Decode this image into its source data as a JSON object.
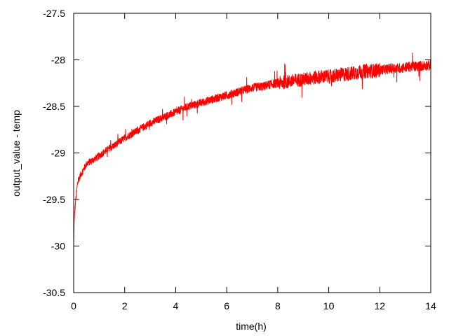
{
  "chart_data": {
    "type": "line",
    "title": "",
    "xlabel": "time(h)",
    "ylabel": "output_value - temp",
    "xlim": [
      0,
      14
    ],
    "ylim": [
      -30.5,
      -27.5
    ],
    "x_ticks": [
      0,
      2,
      4,
      6,
      8,
      10,
      12,
      14
    ],
    "y_ticks": [
      -30.5,
      -30,
      -29.5,
      -29,
      -28.5,
      -28,
      -27.5
    ],
    "x_tick_labels": [
      "0",
      "2",
      "4",
      "6",
      "8",
      "10",
      "12",
      "14"
    ],
    "y_tick_labels": [
      "-30.5",
      "-30",
      "-29.5",
      "-29",
      "-28.5",
      "-28",
      "-27.5"
    ],
    "grid": false,
    "legend": "none",
    "series": [
      {
        "color": "#ff0000",
        "x": [
          0,
          0.02,
          0.05,
          0.1,
          0.15,
          0.2,
          0.3,
          0.4,
          0.5,
          0.6,
          0.8,
          1,
          1.2,
          1.4,
          1.6,
          1.8,
          2,
          2.25,
          2.5,
          2.75,
          3,
          3.25,
          3.5,
          3.75,
          4,
          4.25,
          4.5,
          4.75,
          5,
          5.25,
          5.5,
          5.75,
          6,
          6.25,
          6.5,
          6.75,
          7,
          7.25,
          7.5,
          7.75,
          8,
          8.25,
          8.5,
          8.75,
          9,
          9.25,
          9.5,
          9.75,
          10,
          10.25,
          10.5,
          10.75,
          11,
          11.25,
          11.5,
          11.75,
          12,
          12.25,
          12.5,
          12.75,
          13,
          13.25,
          13.5,
          13.75,
          14
        ],
        "y": [
          -30.0,
          -29.72,
          -29.6,
          -29.45,
          -29.33,
          -29.28,
          -29.22,
          -29.17,
          -29.12,
          -29.1,
          -29.07,
          -29.03,
          -28.99,
          -28.95,
          -28.92,
          -28.88,
          -28.84,
          -28.8,
          -28.76,
          -28.72,
          -28.68,
          -28.65,
          -28.62,
          -28.59,
          -28.56,
          -28.53,
          -28.5,
          -28.48,
          -28.46,
          -28.44,
          -28.42,
          -28.4,
          -28.38,
          -28.36,
          -28.34,
          -28.32,
          -28.3,
          -28.29,
          -28.28,
          -28.26,
          -28.25,
          -28.24,
          -28.23,
          -28.22,
          -28.21,
          -28.2,
          -28.19,
          -28.18,
          -28.18,
          -28.17,
          -28.16,
          -28.15,
          -28.14,
          -28.13,
          -28.12,
          -28.12,
          -28.11,
          -28.1,
          -28.09,
          -28.09,
          -28.08,
          -28.07,
          -28.07,
          -28.06,
          -28.06
        ]
      }
    ]
  }
}
